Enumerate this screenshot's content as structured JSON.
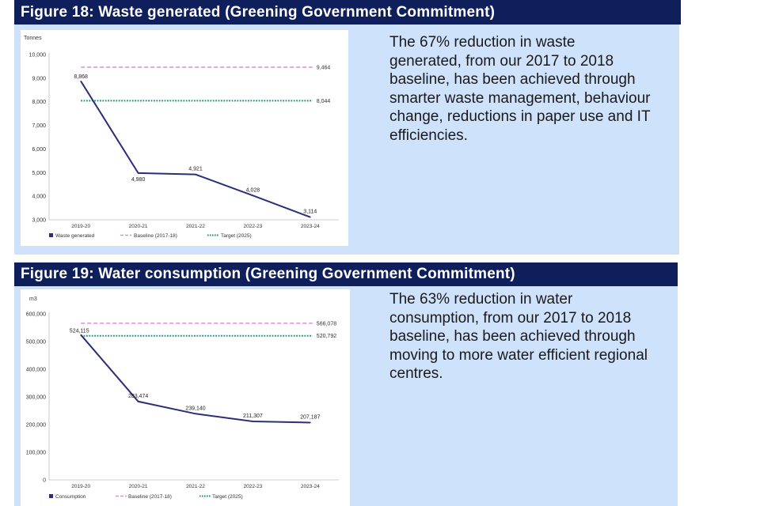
{
  "figures": [
    {
      "header": "Figure 18: Waste generated (Greening Government Commitment)",
      "description": "The 67% reduction in waste generated, from our 2017 to 2018 baseline, has been achieved through smarter waste management, behaviour change, reductions in paper use and IT efficiencies."
    },
    {
      "header": "Figure 19: Water consumption (Greening Government Commitment)",
      "description": "The 63% reduction in water consumption, from our 2017 to 2018 baseline, has been achieved through moving to more water efficient regional centres."
    }
  ],
  "colors": {
    "header_bg": "#0f1f5c",
    "panel_bg": "#cfe2fb",
    "series_line": "#2a2f7a",
    "baseline": "#dc8ede",
    "target": "#1f8f7a"
  },
  "chart_data": [
    {
      "type": "line",
      "ylabel": "Tonnes",
      "ylim": [
        3000,
        10000
      ],
      "ytick_step": 1000,
      "ytick_labels": [
        "3,000",
        "4,000",
        "5,000",
        "6,000",
        "7,000",
        "8,000",
        "9,000",
        "10,000"
      ],
      "categories": [
        "2019-20",
        "2020-21",
        "2021-22",
        "2022-23",
        "2023-24"
      ],
      "series": [
        {
          "name": "Waste generated",
          "values": [
            8868,
            4980,
            4921,
            4028,
            3114
          ],
          "labels": [
            "8,868",
            "4,980",
            "4,921",
            "4,028",
            "3,114"
          ],
          "label_pos": [
            "above",
            "below",
            "above",
            "above",
            "above"
          ]
        }
      ],
      "baseline": {
        "name": "Baseline (2017-18)",
        "value": 9464,
        "label": "9,464"
      },
      "target": {
        "name": "Target (2025)",
        "value": 8044,
        "label": "8,044"
      },
      "legend": "bottom-left"
    },
    {
      "type": "line",
      "ylabel": "m3",
      "ylim": [
        0,
        600000
      ],
      "ytick_step": 100000,
      "ytick_labels": [
        "0",
        "100,000",
        "200,000",
        "300,000",
        "400,000",
        "500,000",
        "600,000"
      ],
      "categories": [
        "2019-20",
        "2020-21",
        "2021-22",
        "2022-23",
        "2023-24"
      ],
      "series": [
        {
          "name": "Consumption",
          "values": [
            524115,
            283474,
            239140,
            211307,
            207187
          ],
          "labels": [
            "524,115",
            "283,474",
            "239,140",
            "211,307",
            "207,187"
          ],
          "label_pos": [
            "left",
            "above",
            "above",
            "above",
            "above"
          ]
        }
      ],
      "baseline": {
        "name": "Baseline (2017-18)",
        "value": 566078,
        "label": "566,078"
      },
      "target": {
        "name": "Target (2025)",
        "value": 520792,
        "label": "520,792"
      },
      "legend": "bottom-left"
    }
  ]
}
